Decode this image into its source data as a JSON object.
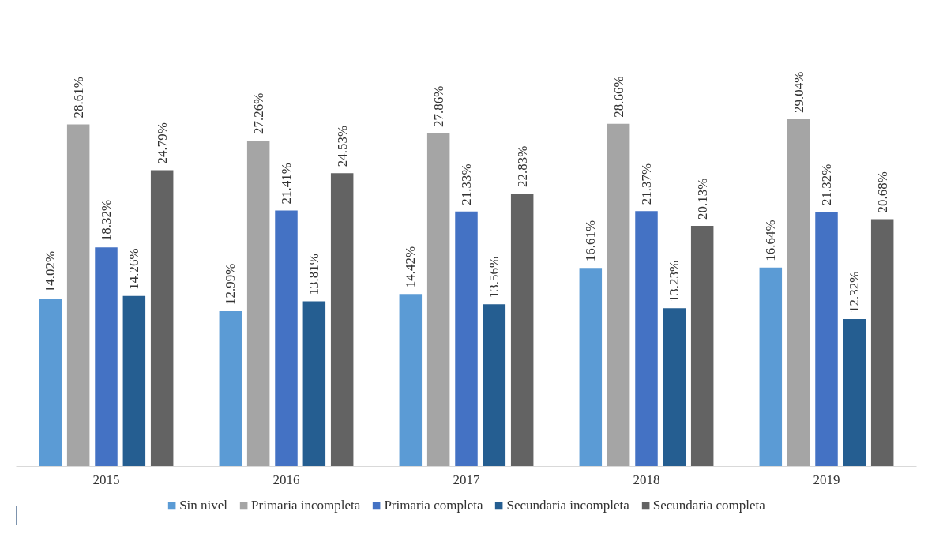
{
  "chart_data": {
    "type": "bar",
    "categories": [
      "2015",
      "2016",
      "2017",
      "2018",
      "2019"
    ],
    "series": [
      {
        "name": "Sin nivel",
        "color": "#5b9bd5",
        "values": [
          14.02,
          12.99,
          14.42,
          16.61,
          16.64
        ],
        "value_labels": [
          "14.02%",
          "12.99%",
          "14.42%",
          "16.61%",
          "16.64%"
        ]
      },
      {
        "name": "Primaria incompleta",
        "color": "#a5a5a5",
        "values": [
          28.61,
          27.26,
          27.86,
          28.66,
          29.04
        ],
        "value_labels": [
          "28.61%",
          "27.26%",
          "27.86%",
          "28.66%",
          "29.04%"
        ]
      },
      {
        "name": "Primaria completa",
        "color": "#4472c4",
        "values": [
          18.32,
          21.41,
          21.33,
          21.37,
          21.32
        ],
        "value_labels": [
          "18.32%",
          "21.41%",
          "21.33%",
          "21.37%",
          "21.32%"
        ]
      },
      {
        "name": "Secundaria incompleta",
        "color": "#255e91",
        "values": [
          14.26,
          13.81,
          13.56,
          13.23,
          12.32
        ],
        "value_labels": [
          "14.26%",
          "13.81%",
          "13.56%",
          "13.23%",
          "12.32%"
        ]
      },
      {
        "name": "Secundaria completa",
        "color": "#636363",
        "values": [
          24.79,
          24.53,
          22.83,
          20.13,
          20.68
        ],
        "value_labels": [
          "24.79%",
          "24.53%",
          "22.83%",
          "20.13%",
          "20.68%"
        ]
      }
    ],
    "grid": false,
    "legend": "bottom"
  }
}
